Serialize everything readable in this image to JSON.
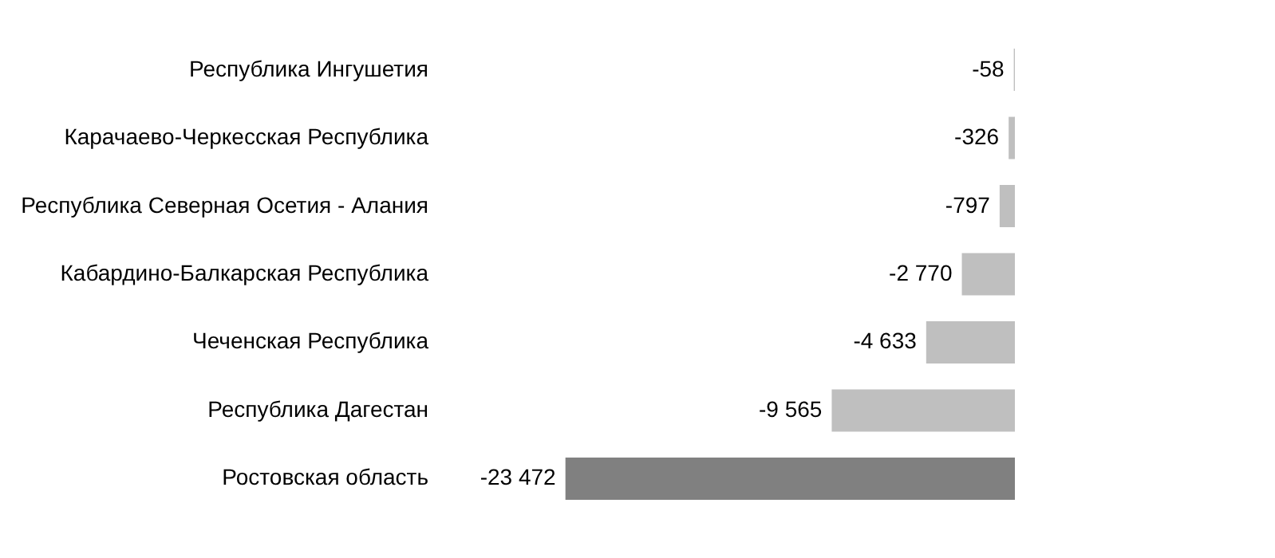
{
  "chart_data": {
    "type": "bar",
    "orientation": "horizontal",
    "categories": [
      "Республика Ингушетия",
      "Карачаево-Черкесская Республика",
      "Республика Северная  Осетия - Алания",
      "Кабардино-Балкарская Республика",
      "Чеченская Республика",
      "Республика Дагестан",
      "Ростовская область"
    ],
    "values": [
      -58,
      -326,
      -797,
      -2770,
      -4633,
      -9565,
      -23472
    ],
    "colors": [
      "#bfbfbf",
      "#bfbfbf",
      "#bfbfbf",
      "#bfbfbf",
      "#bfbfbf",
      "#bfbfbf",
      "#808080"
    ],
    "value_labels": [
      "-58",
      "-326",
      "-797",
      "-2 770",
      "-4 633",
      "-9 565",
      "-23 472"
    ],
    "tick_labels": "y"
  }
}
